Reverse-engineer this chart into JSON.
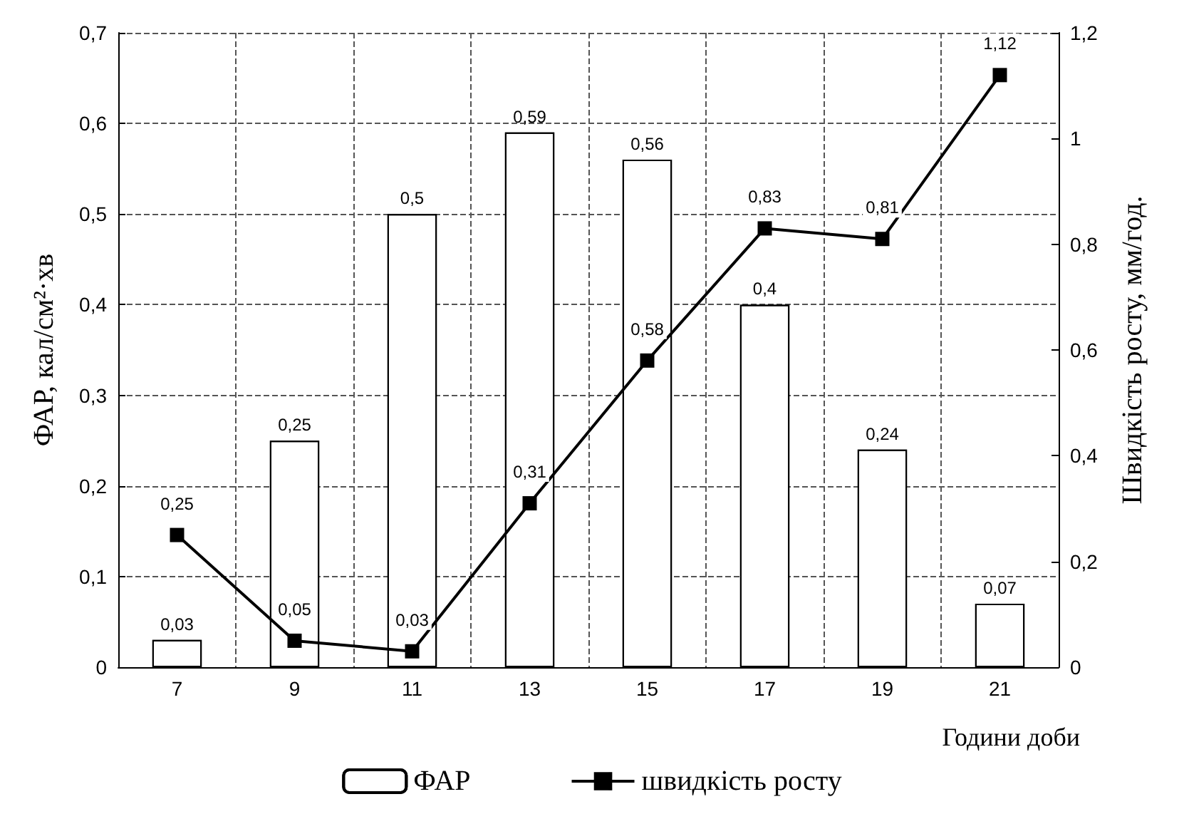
{
  "chart_data": {
    "type": "bar",
    "xlabel": "Години доби",
    "ylabel": "ФАР, кал/см²·хв",
    "y2label": "Швидкість росту, мм/год.",
    "categories": [
      "7",
      "9",
      "11",
      "13",
      "15",
      "17",
      "19",
      "21"
    ],
    "series": [
      {
        "name": "ФАР",
        "color": "#ffffff",
        "values": [
          0.03,
          0.25,
          0.5,
          0.59,
          0.56,
          0.4,
          0.24,
          0.07
        ],
        "value_labels": [
          "0,03",
          "0,25",
          "0,5",
          "0,59",
          "0,56",
          "0,4",
          "0,24",
          "0,07"
        ]
      },
      {
        "name": "швидкість росту",
        "type": "line",
        "axis": "y2",
        "color": "#000000",
        "marker": "square",
        "line_style": "solid",
        "values": [
          0.25,
          0.05,
          0.03,
          0.31,
          0.58,
          0.83,
          0.81,
          1.12
        ],
        "value_labels": [
          "0,25",
          "0,05",
          "0,03",
          "0,31",
          "0,58",
          "0,83",
          "0,81",
          "1,12"
        ]
      }
    ],
    "ylim": [
      0,
      0.7
    ],
    "yticks": [
      0,
      {
        "value": 0.1,
        "label": "0,1"
      },
      {
        "value": 0.2,
        "label": "0,2"
      },
      {
        "value": 0.3,
        "label": "0,3"
      },
      {
        "value": 0.4,
        "label": "0,4"
      },
      {
        "value": 0.5,
        "label": "0,5"
      },
      {
        "value": 0.6,
        "label": "0,6"
      },
      {
        "value": 0.7,
        "label": "0,7"
      }
    ],
    "y2lim": [
      0,
      1.2
    ],
    "y2ticks": [
      0,
      {
        "value": 0.2,
        "label": "0,2"
      },
      {
        "value": 0.4,
        "label": "0,4"
      },
      {
        "value": 0.6,
        "label": "0,6"
      },
      {
        "value": 0.8,
        "label": "0,8"
      },
      1,
      {
        "value": 1.2,
        "label": "1,2"
      }
    ],
    "grid": true,
    "legend": "bottom"
  }
}
